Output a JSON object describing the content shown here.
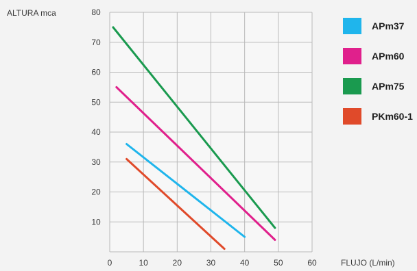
{
  "chart_data": {
    "type": "line",
    "xlabel": "FLUJO (L/min)",
    "ylabel": "ALTURA mca",
    "xlim": [
      0,
      60
    ],
    "ylim": [
      0,
      80
    ],
    "x_ticks": [
      0,
      10,
      20,
      30,
      40,
      50,
      60
    ],
    "y_ticks": [
      10,
      20,
      30,
      40,
      50,
      60,
      70,
      80
    ],
    "grid": true,
    "legend_position": "right",
    "series": [
      {
        "name": "APm37",
        "color": "#1fb5ec",
        "x": [
          5,
          40
        ],
        "y": [
          36,
          5
        ]
      },
      {
        "name": "APm60",
        "color": "#e0208c",
        "x": [
          2,
          49
        ],
        "y": [
          55,
          4
        ]
      },
      {
        "name": "APm75",
        "color": "#1a9a4f",
        "x": [
          1,
          49
        ],
        "y": [
          75,
          8
        ]
      },
      {
        "name": "PKm60-1",
        "color": "#e04a2a",
        "x": [
          5,
          34
        ],
        "y": [
          31,
          1
        ]
      }
    ]
  }
}
